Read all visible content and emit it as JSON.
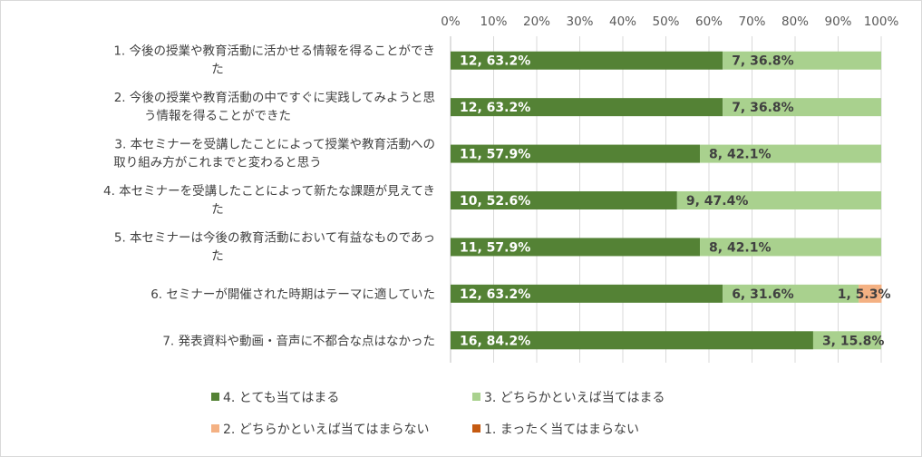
{
  "chart_data": {
    "type": "bar",
    "stacked": true,
    "orientation": "horizontal",
    "percent": true,
    "xlim": [
      0,
      100
    ],
    "ticks": [
      "0%",
      "10%",
      "20%",
      "30%",
      "40%",
      "50%",
      "60%",
      "70%",
      "80%",
      "90%",
      "100%"
    ],
    "categories": [
      [
        "1. 今後の授業や教育活動に活かせる情報を得ることができ",
        "た"
      ],
      [
        "2. 今後の授業や教育活動の中ですぐに実践してみようと思",
        "う情報を得ることができた"
      ],
      [
        "3. 本セミナーを受講したことによって授業や教育活動への",
        "取り組み方がこれまでと変わると思う"
      ],
      [
        "4. 本セミナーを受講したことによって新たな課題が見えてき",
        "た"
      ],
      [
        "5. 本セミナーは今後の教育活動において有益なものであっ",
        "た"
      ],
      [
        "6. セミナーが開催された時期はテーマに適していた"
      ],
      [
        "7. 発表資料や動画・音声に不都合な点はなかった"
      ]
    ],
    "series": [
      {
        "name": "4. とても当てはまる",
        "color": "#548235",
        "counts": [
          12,
          12,
          11,
          10,
          11,
          12,
          16
        ],
        "percents": [
          63.2,
          63.2,
          57.9,
          52.6,
          57.9,
          63.2,
          84.2
        ],
        "labels": [
          "12, 63.2%",
          "12, 63.2%",
          "11, 57.9%",
          "10, 52.6%",
          "11, 57.9%",
          "12, 63.2%",
          "16, 84.2%"
        ]
      },
      {
        "name": "3. どちらかといえば当てはまる",
        "color": "#a9d18e",
        "counts": [
          7,
          7,
          8,
          9,
          8,
          6,
          3
        ],
        "percents": [
          36.8,
          36.8,
          42.1,
          47.4,
          42.1,
          31.6,
          15.8
        ],
        "labels": [
          "7, 36.8%",
          "7, 36.8%",
          "8, 42.1%",
          "9, 47.4%",
          "8, 42.1%",
          "6, 31.6%",
          "3, 15.8%"
        ]
      },
      {
        "name": "2. どちらかといえば当てはまらない",
        "color": "#f4b183",
        "counts": [
          0,
          0,
          0,
          0,
          0,
          1,
          0
        ],
        "percents": [
          0,
          0,
          0,
          0,
          0,
          5.3,
          0
        ],
        "labels": [
          "",
          "",
          "",
          "",
          "",
          "1, 5.3%",
          ""
        ]
      },
      {
        "name": "1. まったく当てはまらない",
        "color": "#c55a11",
        "counts": [
          0,
          0,
          0,
          0,
          0,
          0,
          0
        ],
        "percents": [
          0,
          0,
          0,
          0,
          0,
          0,
          0
        ],
        "labels": [
          "",
          "",
          "",
          "",
          "",
          "",
          ""
        ]
      }
    ],
    "legend_position": "bottom"
  }
}
